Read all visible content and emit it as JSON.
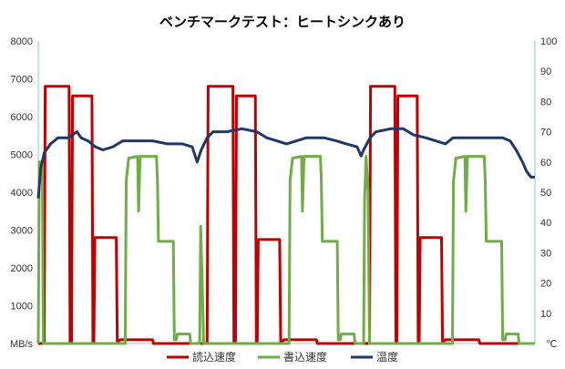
{
  "chart_data": {
    "type": "line",
    "title": "ベンチマークテスト：ヒートシンクあり",
    "y_left": {
      "unit_label": "MB/s",
      "ylim": [
        0,
        8000
      ],
      "ticks": [
        "1000",
        "2000",
        "3000",
        "4000",
        "5000",
        "6000",
        "7000",
        "8000"
      ]
    },
    "y_right": {
      "unit_label": "℃",
      "ylim": [
        0,
        100
      ],
      "ticks": [
        "10",
        "20",
        "30",
        "40",
        "50",
        "60",
        "70",
        "80",
        "90",
        "100"
      ]
    },
    "xlim": [
      0,
      1000
    ],
    "grid": false,
    "legend_position": "bottom",
    "series": [
      {
        "name": "読込速度",
        "color": "#c00000",
        "axis": "left",
        "points": [
          [
            0,
            0
          ],
          [
            12,
            0
          ],
          [
            14,
            6800
          ],
          [
            62,
            6800
          ],
          [
            64,
            0
          ],
          [
            67,
            0
          ],
          [
            69,
            6550
          ],
          [
            108,
            6550
          ],
          [
            110,
            0
          ],
          [
            112,
            0
          ],
          [
            114,
            2800
          ],
          [
            157,
            2800
          ],
          [
            159,
            50
          ],
          [
            160,
            50
          ],
          [
            165,
            100
          ],
          [
            230,
            100
          ],
          [
            232,
            0
          ],
          [
            340,
            0
          ],
          [
            342,
            6800
          ],
          [
            392,
            6800
          ],
          [
            394,
            0
          ],
          [
            397,
            0
          ],
          [
            399,
            6550
          ],
          [
            437,
            6550
          ],
          [
            439,
            0
          ],
          [
            441,
            0
          ],
          [
            443,
            2750
          ],
          [
            486,
            2750
          ],
          [
            488,
            50
          ],
          [
            490,
            50
          ],
          [
            495,
            100
          ],
          [
            560,
            100
          ],
          [
            562,
            0
          ],
          [
            667,
            0
          ],
          [
            669,
            6800
          ],
          [
            718,
            6800
          ],
          [
            720,
            0
          ],
          [
            722,
            0
          ],
          [
            724,
            6550
          ],
          [
            763,
            6550
          ],
          [
            765,
            0
          ],
          [
            767,
            0
          ],
          [
            769,
            2800
          ],
          [
            812,
            2800
          ],
          [
            814,
            50
          ],
          [
            816,
            50
          ],
          [
            820,
            100
          ],
          [
            887,
            100
          ],
          [
            889,
            0
          ],
          [
            1000,
            0
          ]
        ]
      },
      {
        "name": "書込速度",
        "color": "#70ad47",
        "axis": "left",
        "points": [
          [
            0,
            0
          ],
          [
            2,
            4800
          ],
          [
            8,
            4800
          ],
          [
            10,
            0
          ],
          [
            175,
            0
          ],
          [
            177,
            4300
          ],
          [
            182,
            4900
          ],
          [
            200,
            4950
          ],
          [
            202,
            3500
          ],
          [
            205,
            4950
          ],
          [
            238,
            4950
          ],
          [
            240,
            4300
          ],
          [
            242,
            2700
          ],
          [
            272,
            2700
          ],
          [
            274,
            100
          ],
          [
            278,
            100
          ],
          [
            280,
            250
          ],
          [
            305,
            250
          ],
          [
            307,
            0
          ],
          [
            325,
            0
          ],
          [
            327,
            3100
          ],
          [
            330,
            1700
          ],
          [
            333,
            0
          ],
          [
            505,
            0
          ],
          [
            507,
            4300
          ],
          [
            512,
            4900
          ],
          [
            530,
            4950
          ],
          [
            532,
            3500
          ],
          [
            535,
            4950
          ],
          [
            568,
            4950
          ],
          [
            570,
            4300
          ],
          [
            572,
            2700
          ],
          [
            602,
            2700
          ],
          [
            604,
            100
          ],
          [
            608,
            100
          ],
          [
            610,
            250
          ],
          [
            636,
            250
          ],
          [
            638,
            0
          ],
          [
            655,
            0
          ],
          [
            657,
            3800
          ],
          [
            660,
            4950
          ],
          [
            664,
            4000
          ],
          [
            667,
            0
          ],
          [
            834,
            0
          ],
          [
            836,
            4300
          ],
          [
            841,
            4900
          ],
          [
            859,
            4950
          ],
          [
            861,
            3500
          ],
          [
            864,
            4950
          ],
          [
            898,
            4950
          ],
          [
            900,
            4300
          ],
          [
            902,
            2700
          ],
          [
            933,
            2700
          ],
          [
            935,
            100
          ],
          [
            940,
            100
          ],
          [
            942,
            250
          ],
          [
            966,
            250
          ],
          [
            968,
            0
          ],
          [
            1000,
            0
          ]
        ]
      },
      {
        "name": "温度",
        "color": "#1f3864",
        "axis": "right",
        "points": [
          [
            0,
            48
          ],
          [
            5,
            58
          ],
          [
            12,
            63
          ],
          [
            25,
            66
          ],
          [
            40,
            68
          ],
          [
            60,
            68
          ],
          [
            78,
            70
          ],
          [
            86,
            68
          ],
          [
            100,
            67
          ],
          [
            115,
            65
          ],
          [
            130,
            64
          ],
          [
            150,
            65
          ],
          [
            170,
            67
          ],
          [
            200,
            67
          ],
          [
            230,
            67
          ],
          [
            260,
            66
          ],
          [
            290,
            66
          ],
          [
            310,
            65
          ],
          [
            320,
            60
          ],
          [
            328,
            64
          ],
          [
            340,
            68
          ],
          [
            352,
            70
          ],
          [
            380,
            70
          ],
          [
            410,
            71
          ],
          [
            440,
            70
          ],
          [
            460,
            68
          ],
          [
            480,
            67
          ],
          [
            500,
            66
          ],
          [
            520,
            67
          ],
          [
            540,
            68
          ],
          [
            575,
            68
          ],
          [
            600,
            67
          ],
          [
            620,
            66
          ],
          [
            642,
            65
          ],
          [
            650,
            62
          ],
          [
            655,
            64
          ],
          [
            668,
            68
          ],
          [
            680,
            70
          ],
          [
            710,
            71
          ],
          [
            735,
            71
          ],
          [
            755,
            69
          ],
          [
            780,
            68
          ],
          [
            800,
            67
          ],
          [
            820,
            66
          ],
          [
            835,
            68
          ],
          [
            860,
            68
          ],
          [
            885,
            68
          ],
          [
            905,
            68
          ],
          [
            935,
            68
          ],
          [
            950,
            67
          ],
          [
            962,
            64
          ],
          [
            975,
            60
          ],
          [
            983,
            57
          ],
          [
            992,
            55
          ],
          [
            1000,
            55
          ]
        ]
      }
    ]
  }
}
